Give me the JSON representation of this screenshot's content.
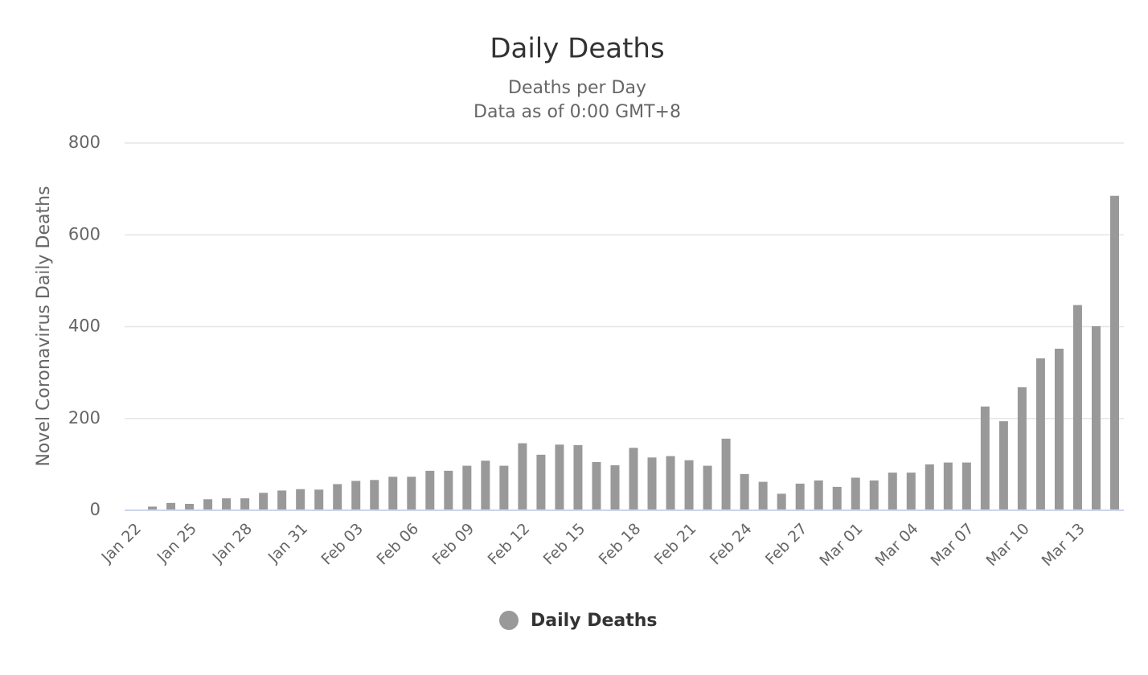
{
  "chart_data": {
    "type": "bar",
    "title": "Daily Deaths",
    "subtitle": [
      "Deaths per Day",
      "Data as of 0:00 GMT+8"
    ],
    "y_label": "Novel Coronavirus Daily Deaths",
    "categories": [
      "Jan 22",
      null,
      null,
      "Jan 25",
      null,
      null,
      "Jan 28",
      null,
      null,
      "Jan 31",
      null,
      null,
      "Feb 03",
      null,
      null,
      "Feb 06",
      null,
      null,
      "Feb 09",
      null,
      null,
      "Feb 12",
      null,
      null,
      "Feb 15",
      null,
      null,
      "Feb 18",
      null,
      null,
      "Feb 21",
      null,
      null,
      "Feb 24",
      null,
      null,
      "Feb 27",
      null,
      null,
      "Mar 01",
      null,
      null,
      "Mar 04",
      null,
      null,
      "Mar 07",
      null,
      null,
      "Mar 10",
      null,
      null,
      "Mar 13",
      null,
      null
    ],
    "series": [
      {
        "name": "Daily Deaths",
        "color": "#999999",
        "values": [
          0,
          8,
          16,
          14,
          24,
          26,
          26,
          38,
          43,
          46,
          45,
          57,
          64,
          66,
          73,
          73,
          86,
          86,
          97,
          108,
          97,
          146,
          121,
          143,
          142,
          105,
          98,
          136,
          115,
          118,
          109,
          97,
          156,
          79,
          62,
          36,
          58,
          65,
          51,
          71,
          65,
          82,
          82,
          100,
          104,
          104,
          226,
          194,
          268,
          331,
          352,
          447,
          401,
          685
        ]
      }
    ],
    "ylim": [
      0,
      800
    ],
    "yticks": [
      0,
      200,
      400,
      600,
      800
    ],
    "grid": true,
    "legend": "bottom"
  }
}
